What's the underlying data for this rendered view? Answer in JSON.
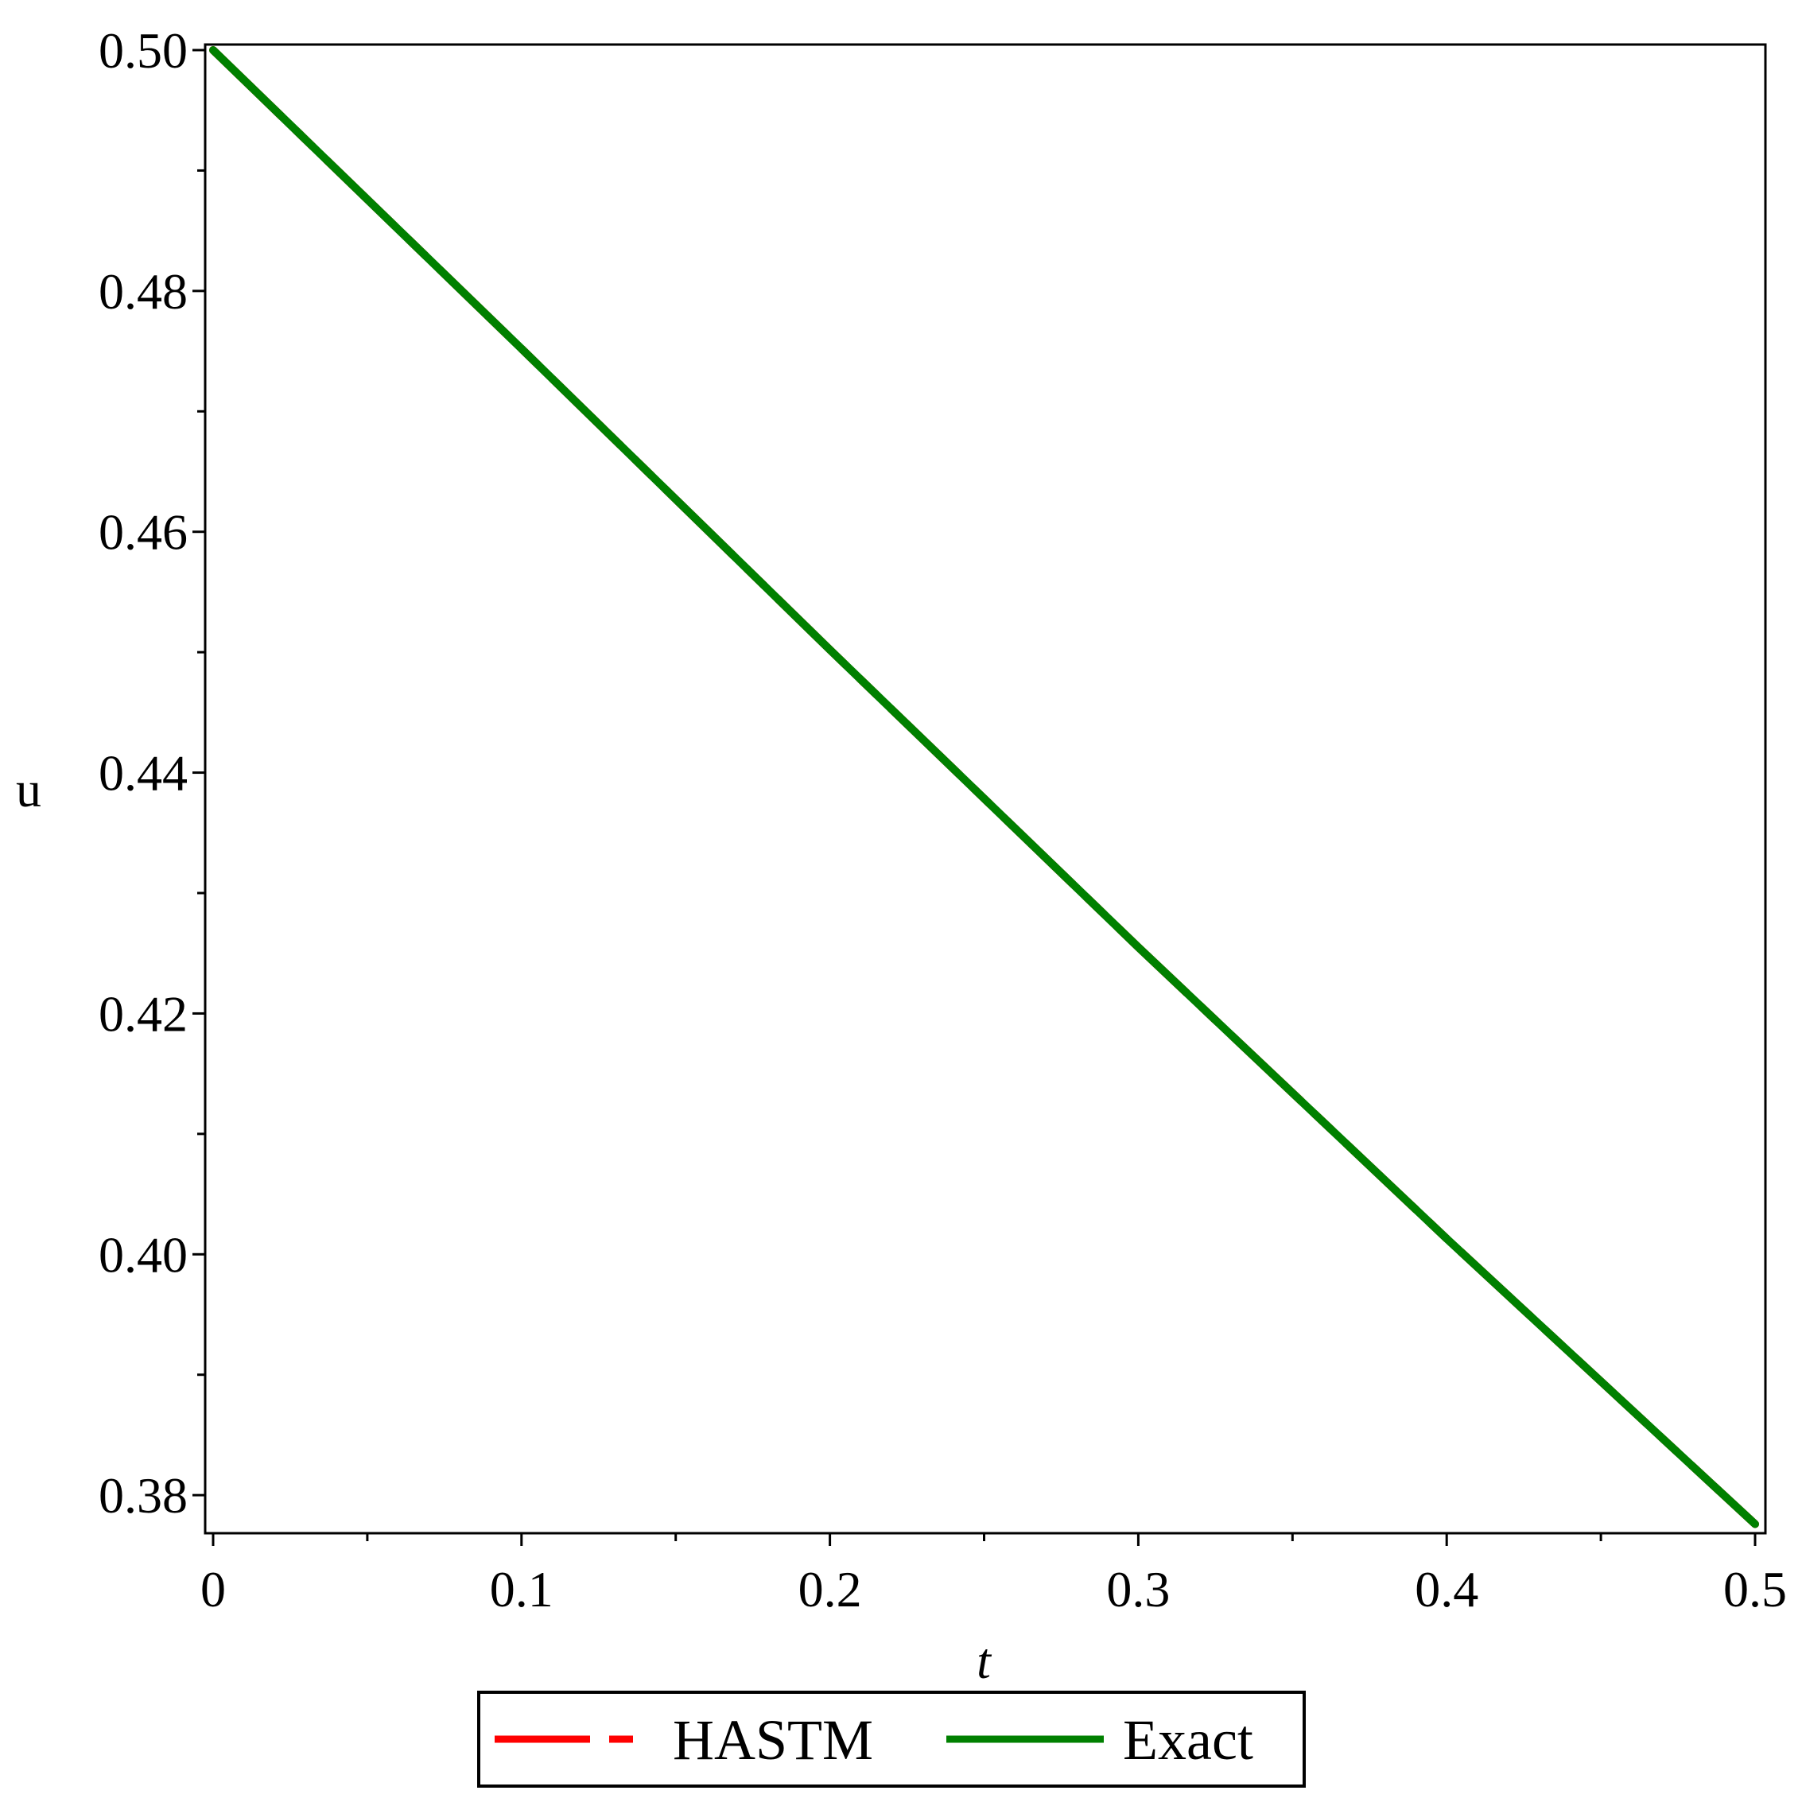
{
  "chart_data": {
    "type": "line",
    "title": "",
    "xlabel": "t",
    "ylabel": "u",
    "xlim": [
      0,
      0.5
    ],
    "ylim": [
      0.3775,
      0.5
    ],
    "x_ticks": [
      "0",
      "0.1",
      "0.2",
      "0.3",
      "0.4",
      "0.5"
    ],
    "y_ticks": [
      "0.38",
      "0.40",
      "0.42",
      "0.44",
      "0.46",
      "0.48",
      "0.50"
    ],
    "grid": false,
    "legend_position": "bottom",
    "series": [
      {
        "name": "HASTM",
        "color": "#ff0000",
        "style": "dashed",
        "x": [
          0,
          0.1,
          0.2,
          0.3,
          0.4,
          0.5
        ],
        "y": [
          0.5,
          0.4752,
          0.4502,
          0.4255,
          0.4013,
          0.3776
        ]
      },
      {
        "name": "Exact",
        "color": "#008000",
        "style": "solid",
        "x": [
          0,
          0.1,
          0.2,
          0.3,
          0.4,
          0.5
        ],
        "y": [
          0.5,
          0.4752,
          0.4502,
          0.4255,
          0.4013,
          0.3776
        ]
      }
    ]
  }
}
